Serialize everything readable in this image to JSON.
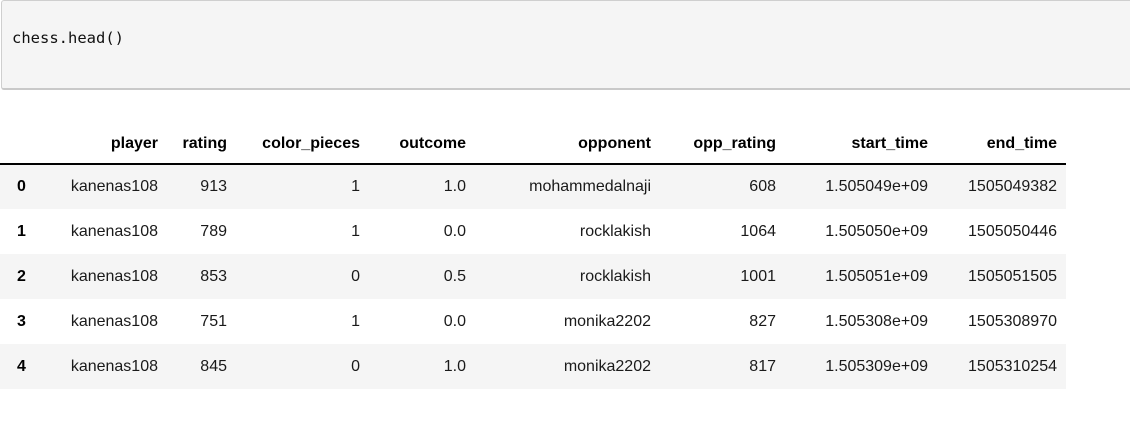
{
  "code_cell": {
    "source": "chess.head()"
  },
  "table": {
    "index_header": "",
    "columns": [
      "player",
      "rating",
      "color_pieces",
      "outcome",
      "opponent",
      "opp_rating",
      "start_time",
      "end_time"
    ],
    "rows": [
      {
        "index": "0",
        "cells": [
          "kanenas108",
          "913",
          "1",
          "1.0",
          "mohammedalnaji",
          "608",
          "1.505049e+09",
          "1505049382"
        ]
      },
      {
        "index": "1",
        "cells": [
          "kanenas108",
          "789",
          "1",
          "0.0",
          "rocklakish",
          "1064",
          "1.505050e+09",
          "1505050446"
        ]
      },
      {
        "index": "2",
        "cells": [
          "kanenas108",
          "853",
          "0",
          "0.5",
          "rocklakish",
          "1001",
          "1.505051e+09",
          "1505051505"
        ]
      },
      {
        "index": "3",
        "cells": [
          "kanenas108",
          "751",
          "1",
          "0.0",
          "monika2202",
          "827",
          "1.505308e+09",
          "1505308970"
        ]
      },
      {
        "index": "4",
        "cells": [
          "kanenas108",
          "845",
          "0",
          "1.0",
          "monika2202",
          "817",
          "1.505309e+09",
          "1505310254"
        ]
      }
    ]
  },
  "colors": {
    "cell_background": "#f5f5f5",
    "cell_border": "#cfcfcf",
    "row_stripe": "#f5f5f5",
    "header_rule": "#000000",
    "text": "#1a1a1a"
  }
}
